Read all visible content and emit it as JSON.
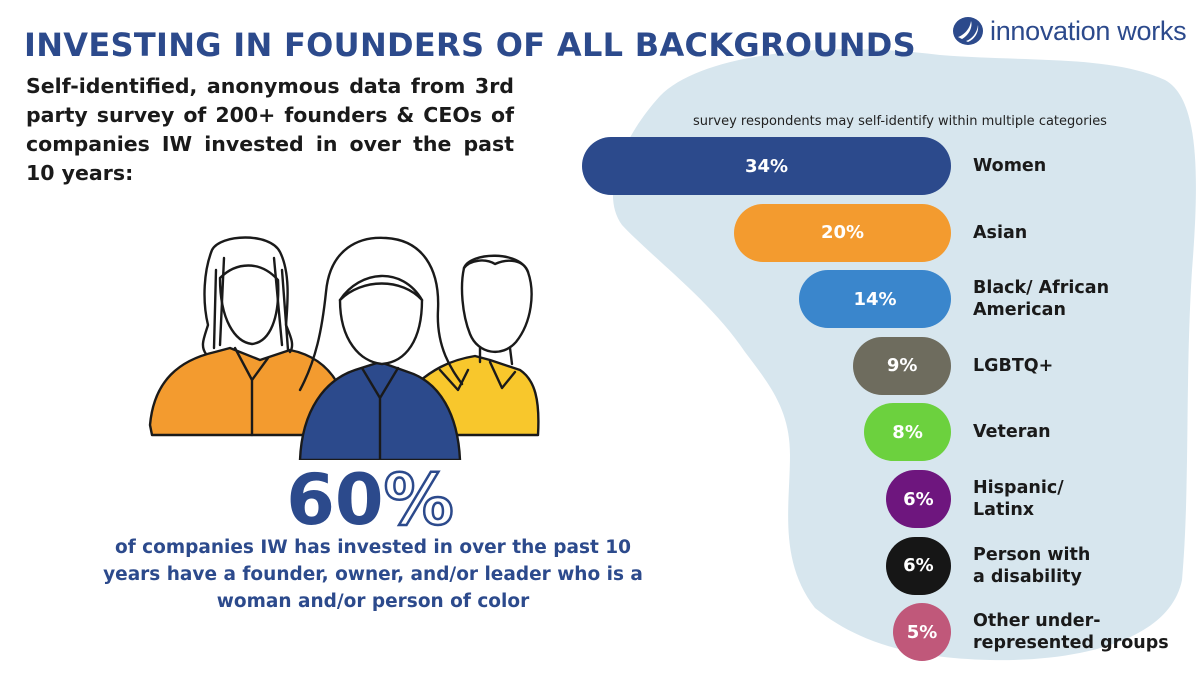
{
  "header": {
    "title": "INVESTING IN FOUNDERS OF ALL BACKGROUNDS",
    "logo_text": "innovation works",
    "logo_icon": "swoosh-logo-icon"
  },
  "intro": {
    "text": "Self-identified, anonymous data from 3rd party survey of 200+ founders & CEOs of companies IW invested in over the past 10 years:"
  },
  "highlight": {
    "value": "60",
    "unit": "%",
    "caption": "of companies IW has invested in over the past 10 years have a founder, owner, and/or leader who is a woman and/or person of color"
  },
  "illustration": {
    "icon": "three-founders-illustration",
    "colors": {
      "orange": "#f39b2f",
      "navy": "#2c4a8c",
      "yellow": "#f8c72c"
    }
  },
  "colors": {
    "brand": "#2c4a8c",
    "background_blob": "#d7e6ee"
  },
  "chart_data": {
    "type": "bar",
    "orientation": "horizontal",
    "note": "survey respondents may self-identify within multiple categories",
    "categories": [
      "Women",
      "Asian",
      "Black/ African American",
      "LGBTQ+",
      "Veteran",
      "Hispanic/ Latinx",
      "Person with a disability",
      "Other under-represented groups"
    ],
    "values": [
      34,
      20,
      14,
      9,
      8,
      6,
      6,
      5
    ],
    "value_labels": [
      "34%",
      "20%",
      "14%",
      "9%",
      "8%",
      "6%",
      "6%",
      "5%"
    ],
    "colors": [
      "#2c4a8c",
      "#f39b2f",
      "#3a86cc",
      "#6e6c5e",
      "#6cd13e",
      "#6e167e",
      "#161616",
      "#c0587a"
    ],
    "unit": "%",
    "grid": false,
    "legend": "none"
  }
}
